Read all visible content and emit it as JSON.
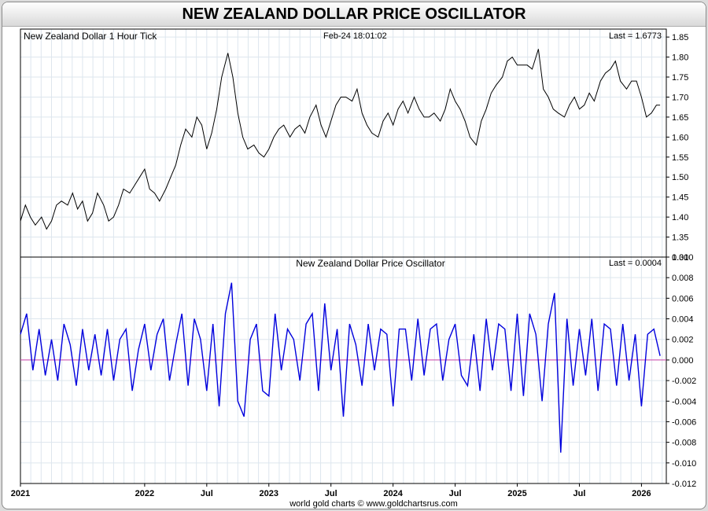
{
  "header": {
    "title": "NEW ZEALAND DOLLAR PRICE OSCILLATOR"
  },
  "footer": {
    "credit": "world gold charts © www.goldchartsrus.com"
  },
  "colors": {
    "price_line": "#000000",
    "oscillator_line": "#0000dd",
    "zero_line": "#cc44aa",
    "grid": "#dde6ee"
  },
  "chart_data": [
    {
      "type": "line",
      "title": "New Zealand Dollar 1 Hour Tick",
      "timestamp": "Feb-24  18:01:02",
      "last_label": "Last = 1.6773",
      "ylim": [
        1.3,
        1.87
      ],
      "yticks": [
        "1.30",
        "1.35",
        "1.40",
        "1.45",
        "1.50",
        "1.55",
        "1.60",
        "1.65",
        "1.70",
        "1.75",
        "1.80",
        "1.85"
      ],
      "xlim": [
        2021.0,
        2026.2
      ],
      "x": [
        2021.0,
        2021.04,
        2021.08,
        2021.12,
        2021.17,
        2021.21,
        2021.25,
        2021.29,
        2021.33,
        2021.38,
        2021.42,
        2021.46,
        2021.5,
        2021.54,
        2021.58,
        2021.62,
        2021.67,
        2021.71,
        2021.75,
        2021.79,
        2021.83,
        2021.88,
        2021.92,
        2021.96,
        2022.0,
        2022.04,
        2022.08,
        2022.12,
        2022.17,
        2022.21,
        2022.25,
        2022.29,
        2022.33,
        2022.38,
        2022.42,
        2022.46,
        2022.5,
        2022.54,
        2022.58,
        2022.62,
        2022.67,
        2022.71,
        2022.75,
        2022.79,
        2022.83,
        2022.88,
        2022.92,
        2022.96,
        2023.0,
        2023.04,
        2023.08,
        2023.12,
        2023.17,
        2023.21,
        2023.25,
        2023.29,
        2023.33,
        2023.38,
        2023.42,
        2023.46,
        2023.5,
        2023.54,
        2023.58,
        2023.62,
        2023.67,
        2023.71,
        2023.75,
        2023.79,
        2023.83,
        2023.88,
        2023.92,
        2023.96,
        2024.0,
        2024.04,
        2024.08,
        2024.12,
        2024.17,
        2024.21,
        2024.25,
        2024.29,
        2024.33,
        2024.38,
        2024.42,
        2024.46,
        2024.5,
        2024.54,
        2024.58,
        2024.62,
        2024.67,
        2024.71,
        2024.75,
        2024.79,
        2024.83,
        2024.88,
        2024.92,
        2024.96,
        2025.0,
        2025.04,
        2025.08,
        2025.12,
        2025.17,
        2025.21,
        2025.25,
        2025.29,
        2025.33,
        2025.38,
        2025.42,
        2025.46,
        2025.5,
        2025.54,
        2025.58,
        2025.62,
        2025.67,
        2025.71,
        2025.75,
        2025.79,
        2025.83,
        2025.88,
        2025.92,
        2025.96,
        2026.0,
        2026.04,
        2026.08,
        2026.12,
        2026.15
      ],
      "values": [
        1.39,
        1.43,
        1.4,
        1.38,
        1.4,
        1.37,
        1.39,
        1.43,
        1.44,
        1.43,
        1.46,
        1.42,
        1.44,
        1.39,
        1.41,
        1.46,
        1.43,
        1.39,
        1.4,
        1.43,
        1.47,
        1.46,
        1.48,
        1.5,
        1.52,
        1.47,
        1.46,
        1.44,
        1.47,
        1.5,
        1.53,
        1.58,
        1.62,
        1.6,
        1.65,
        1.63,
        1.57,
        1.61,
        1.67,
        1.75,
        1.81,
        1.75,
        1.66,
        1.6,
        1.57,
        1.58,
        1.56,
        1.55,
        1.57,
        1.6,
        1.62,
        1.63,
        1.6,
        1.62,
        1.63,
        1.61,
        1.65,
        1.68,
        1.63,
        1.6,
        1.64,
        1.68,
        1.7,
        1.7,
        1.69,
        1.72,
        1.66,
        1.63,
        1.61,
        1.6,
        1.64,
        1.66,
        1.63,
        1.67,
        1.69,
        1.66,
        1.7,
        1.67,
        1.65,
        1.65,
        1.66,
        1.64,
        1.67,
        1.72,
        1.69,
        1.67,
        1.64,
        1.6,
        1.58,
        1.64,
        1.67,
        1.71,
        1.73,
        1.75,
        1.79,
        1.8,
        1.78,
        1.78,
        1.78,
        1.77,
        1.82,
        1.72,
        1.7,
        1.67,
        1.66,
        1.65,
        1.68,
        1.7,
        1.67,
        1.68,
        1.71,
        1.69,
        1.74,
        1.76,
        1.77,
        1.79,
        1.74,
        1.72,
        1.74,
        1.74,
        1.7,
        1.65,
        1.66,
        1.68,
        1.68
      ]
    },
    {
      "type": "line",
      "title": "New Zealand Dollar Price Oscillator",
      "last_label": "Last = 0.0004",
      "ylim": [
        -0.012,
        0.01
      ],
      "yticks": [
        "0.010",
        "0.008",
        "0.006",
        "0.004",
        "0.002",
        "0.000",
        "-0.002",
        "-0.004",
        "-0.006",
        "-0.008",
        "-0.010",
        "-0.012"
      ],
      "xlim": [
        2021.0,
        2026.2
      ],
      "xticks": [
        {
          "x": 2021.0,
          "label": "2021"
        },
        {
          "x": 2022.0,
          "label": "2022"
        },
        {
          "x": 2022.5,
          "label": "Jul"
        },
        {
          "x": 2023.0,
          "label": "2023"
        },
        {
          "x": 2023.5,
          "label": "Jul"
        },
        {
          "x": 2024.0,
          "label": "2024"
        },
        {
          "x": 2024.5,
          "label": "Jul"
        },
        {
          "x": 2025.0,
          "label": "2025"
        },
        {
          "x": 2025.5,
          "label": "Jul"
        },
        {
          "x": 2026.0,
          "label": "2026"
        }
      ],
      "x": [
        2021.0,
        2021.05,
        2021.1,
        2021.15,
        2021.2,
        2021.25,
        2021.3,
        2021.35,
        2021.4,
        2021.45,
        2021.5,
        2021.55,
        2021.6,
        2021.65,
        2021.7,
        2021.75,
        2021.8,
        2021.85,
        2021.9,
        2021.95,
        2022.0,
        2022.05,
        2022.1,
        2022.15,
        2022.2,
        2022.25,
        2022.3,
        2022.35,
        2022.4,
        2022.45,
        2022.5,
        2022.55,
        2022.6,
        2022.65,
        2022.7,
        2022.75,
        2022.8,
        2022.85,
        2022.9,
        2022.95,
        2023.0,
        2023.05,
        2023.1,
        2023.15,
        2023.2,
        2023.25,
        2023.3,
        2023.35,
        2023.4,
        2023.45,
        2023.5,
        2023.55,
        2023.6,
        2023.65,
        2023.7,
        2023.75,
        2023.8,
        2023.85,
        2023.9,
        2023.95,
        2024.0,
        2024.05,
        2024.1,
        2024.15,
        2024.2,
        2024.25,
        2024.3,
        2024.35,
        2024.4,
        2024.45,
        2024.5,
        2024.55,
        2024.6,
        2024.65,
        2024.7,
        2024.75,
        2024.8,
        2024.85,
        2024.9,
        2024.95,
        2025.0,
        2025.05,
        2025.1,
        2025.15,
        2025.2,
        2025.25,
        2025.3,
        2025.35,
        2025.4,
        2025.45,
        2025.5,
        2025.55,
        2025.6,
        2025.65,
        2025.7,
        2025.75,
        2025.8,
        2025.85,
        2025.9,
        2025.95,
        2026.0,
        2026.05,
        2026.1,
        2026.15
      ],
      "values": [
        0.0025,
        0.0045,
        -0.001,
        0.003,
        -0.0015,
        0.002,
        -0.002,
        0.0035,
        0.0015,
        -0.0025,
        0.003,
        -0.001,
        0.0025,
        -0.0015,
        0.003,
        -0.002,
        0.002,
        0.003,
        -0.003,
        0.001,
        0.0035,
        -0.001,
        0.0025,
        0.004,
        -0.002,
        0.0015,
        0.0045,
        -0.0025,
        0.004,
        0.002,
        -0.003,
        0.0035,
        -0.0045,
        0.0045,
        0.0075,
        -0.004,
        -0.0055,
        0.002,
        0.0035,
        -0.003,
        -0.0035,
        0.0045,
        -0.001,
        0.003,
        0.002,
        -0.002,
        0.0035,
        0.0045,
        -0.003,
        0.0055,
        -0.001,
        0.003,
        -0.0055,
        0.0035,
        0.0015,
        -0.0025,
        0.0035,
        -0.001,
        0.003,
        0.0025,
        -0.0045,
        0.003,
        0.003,
        -0.002,
        0.004,
        -0.0015,
        0.003,
        0.0035,
        -0.002,
        0.002,
        0.0035,
        -0.0015,
        -0.0025,
        0.0025,
        -0.003,
        0.004,
        -0.001,
        0.0035,
        0.003,
        -0.003,
        0.0045,
        -0.0035,
        0.0045,
        0.0025,
        -0.004,
        0.0035,
        0.0065,
        -0.009,
        0.004,
        -0.0025,
        0.003,
        -0.0015,
        0.004,
        -0.003,
        0.0035,
        0.003,
        -0.0025,
        0.0035,
        -0.002,
        0.0025,
        -0.0045,
        0.0025,
        0.003,
        0.0004
      ]
    }
  ]
}
